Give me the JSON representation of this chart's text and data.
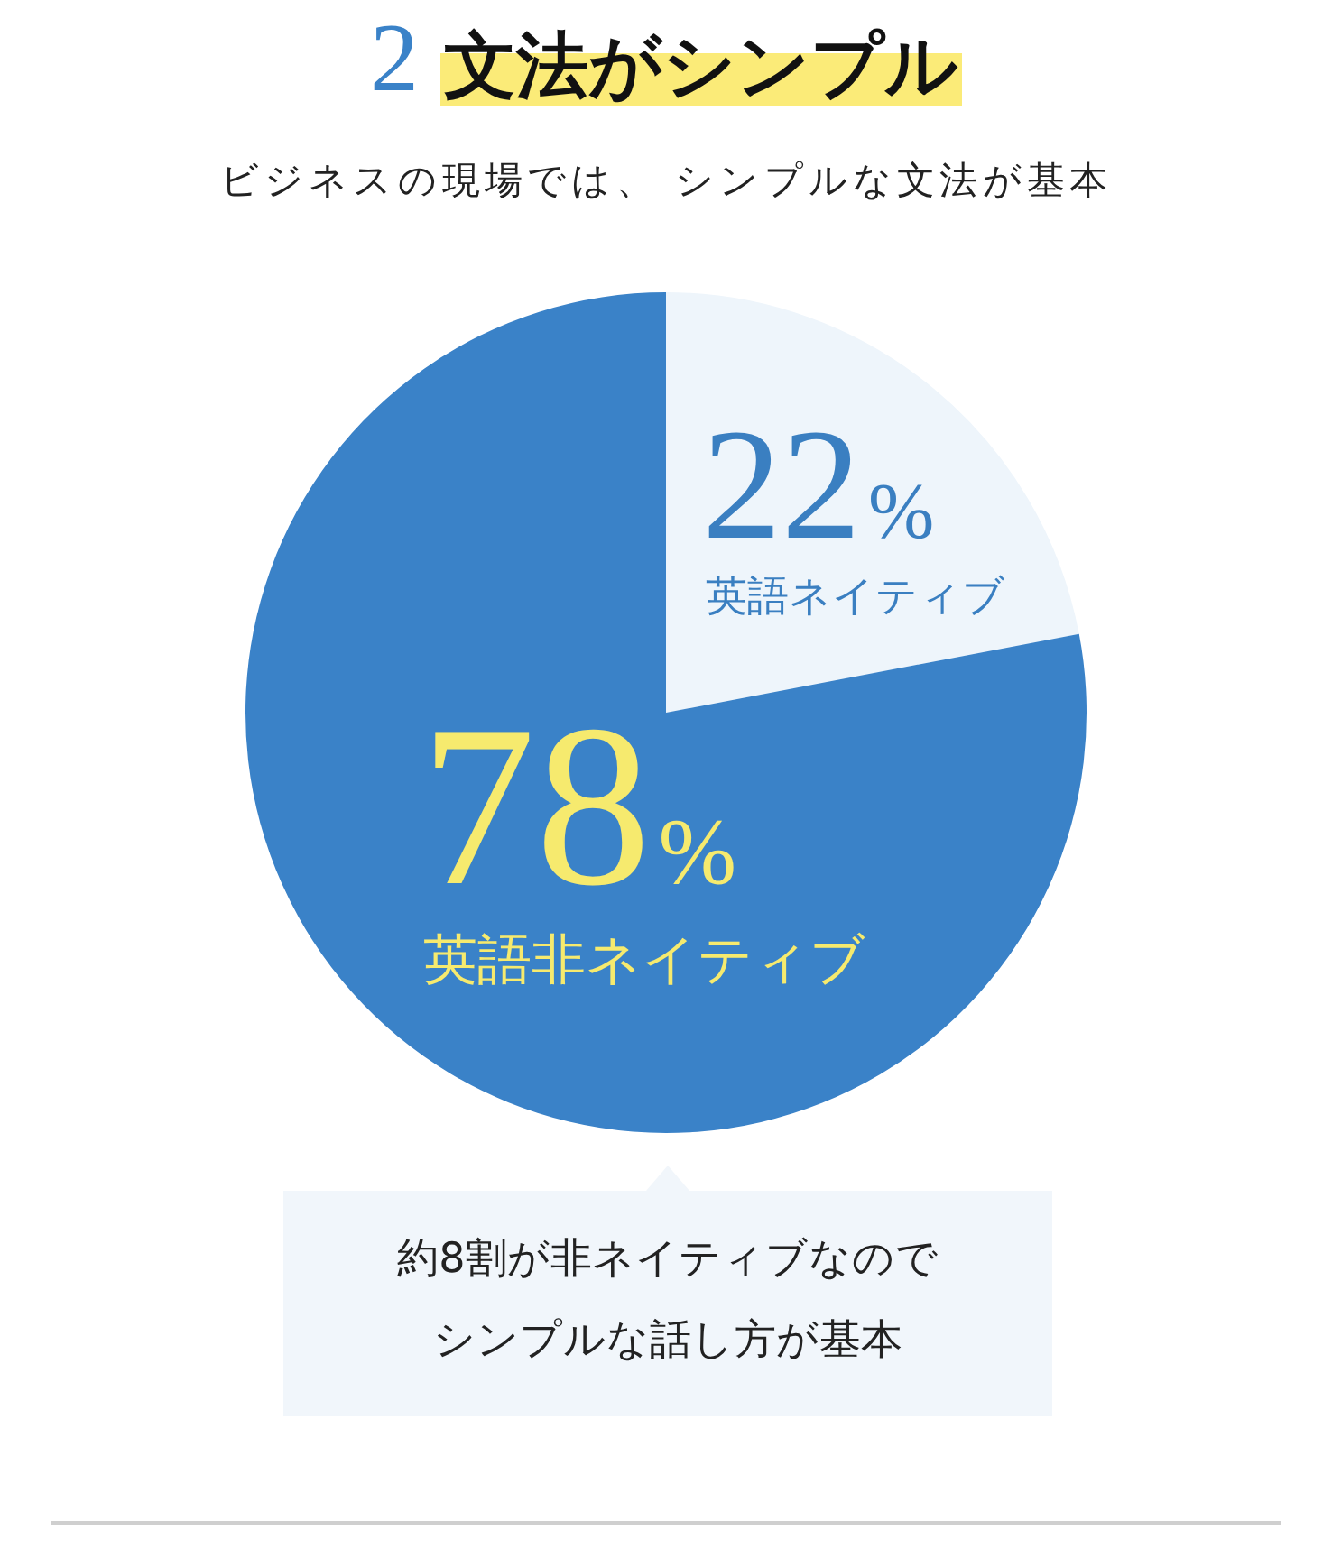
{
  "chart_data": {
    "type": "pie",
    "title": "2文法がシンプル",
    "subtitle": "ビジネスの現場では、 シンプルな文法が基本",
    "categories": [
      "英語ネイティブ",
      "英語非ネイティブ"
    ],
    "values": [
      22,
      78
    ],
    "colors": [
      "#eef5fb",
      "#3a82c8"
    ],
    "value_labels": [
      "22%",
      "78%"
    ],
    "legend": false,
    "annotations": [
      "約8割が非ネイティブなのでシンプルな話し方が基本"
    ]
  }
}
